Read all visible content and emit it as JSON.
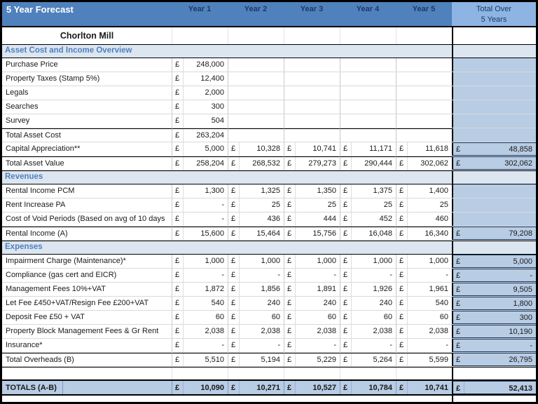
{
  "title": "5 Year Forecast",
  "property_name": "Chorlton Mill",
  "currency": "£",
  "year_columns": [
    "Year 1",
    "Year 2",
    "Year 3",
    "Year 4",
    "Year 5"
  ],
  "total_header": [
    "Total Over",
    "5 Years"
  ],
  "colors": {
    "header_blue": "#4F81BD",
    "total_header_bg": "#8DB4E2",
    "total_header_text": "#17375E",
    "year_header_text": "#1F3864",
    "section_bg": "#DCE6F1",
    "section_text": "#4F81BD",
    "block_bg": "#B8CCE4",
    "navy": "#17375E"
  },
  "sections": [
    {
      "title": "Asset Cost and Income Overview",
      "rows": [
        {
          "label": "Purchase Price",
          "values": [
            "248,000",
            null,
            null,
            null,
            null
          ],
          "total": {
            "type": "block"
          }
        },
        {
          "label": "Property Taxes (Stamp 5%)",
          "values": [
            "12,400",
            null,
            null,
            null,
            null
          ],
          "total": {
            "type": "block"
          }
        },
        {
          "label": "Legals",
          "values": [
            "2,000",
            null,
            null,
            null,
            null
          ],
          "total": {
            "type": "block"
          }
        },
        {
          "label": "Searches",
          "values": [
            "300",
            null,
            null,
            null,
            null
          ],
          "total": {
            "type": "block"
          }
        },
        {
          "label": "Survey",
          "values": [
            "504",
            null,
            null,
            null,
            null
          ],
          "total": {
            "type": "block"
          }
        },
        {
          "label": "Total Asset Cost",
          "values": [
            "263,204",
            null,
            null,
            null,
            null
          ],
          "total": {
            "type": "block"
          },
          "style": "subtotal"
        },
        {
          "label": "Capital Appreciation**",
          "values": [
            "5,000",
            "10,328",
            "10,741",
            "11,171",
            "11,618"
          ],
          "total": {
            "type": "value",
            "amount": "48,858"
          }
        },
        {
          "label": "Total Asset Value",
          "values": [
            "258,204",
            "268,532",
            "279,273",
            "290,444",
            "302,062"
          ],
          "total": {
            "type": "value",
            "amount": "302,062"
          },
          "style": "subtotal"
        }
      ]
    },
    {
      "title": "Revenues",
      "rows": [
        {
          "label": "Rental Income PCM",
          "values": [
            "1,300",
            "1,325",
            "1,350",
            "1,375",
            "1,400"
          ],
          "total": {
            "type": "block"
          }
        },
        {
          "label": "Rent Increase PA",
          "values": [
            "-",
            "25",
            "25",
            "25",
            "25"
          ],
          "total": {
            "type": "block"
          }
        },
        {
          "label": "Cost of Void Periods (Based on avg of 10 days",
          "values": [
            "-",
            "436",
            "444",
            "452",
            "460"
          ],
          "total": {
            "type": "block"
          }
        },
        {
          "label": "Rental Income (A)",
          "values": [
            "15,600",
            "15,464",
            "15,756",
            "16,048",
            "16,340"
          ],
          "total": {
            "type": "value",
            "amount": "79,208"
          },
          "style": "subtotal"
        }
      ]
    },
    {
      "title": "Expenses",
      "rows": [
        {
          "label": "Impairment Charge (Maintenance)*",
          "values": [
            "1,000",
            "1,000",
            "1,000",
            "1,000",
            "1,000"
          ],
          "total": {
            "type": "value",
            "amount": "5,000"
          }
        },
        {
          "label": "Compliance (gas cert and EICR)",
          "values": [
            "-",
            "-",
            "-",
            "-",
            "-"
          ],
          "total": {
            "type": "value",
            "amount": "-"
          }
        },
        {
          "label": "Management Fees 10%+VAT",
          "values": [
            "1,872",
            "1,856",
            "1,891",
            "1,926",
            "1,961"
          ],
          "total": {
            "type": "value",
            "amount": "9,505"
          }
        },
        {
          "label": "Let Fee £450+VAT/Resign Fee £200+VAT",
          "values": [
            "540",
            "240",
            "240",
            "240",
            "540"
          ],
          "total": {
            "type": "value",
            "amount": "1,800"
          }
        },
        {
          "label": "Deposit Fee £50 + VAT",
          "values": [
            "60",
            "60",
            "60",
            "60",
            "60"
          ],
          "total": {
            "type": "value",
            "amount": "300"
          }
        },
        {
          "label": "Property Block Management Fees & Gr Rent",
          "values": [
            "2,038",
            "2,038",
            "2,038",
            "2,038",
            "2,038"
          ],
          "total": {
            "type": "value",
            "amount": "10,190"
          }
        },
        {
          "label": "Insurance*",
          "values": [
            "-",
            "-",
            "-",
            "-",
            "-"
          ],
          "total": {
            "type": "value",
            "amount": "-"
          }
        },
        {
          "label": "Total Overheads (B)",
          "values": [
            "5,510",
            "5,194",
            "5,229",
            "5,264",
            "5,599"
          ],
          "total": {
            "type": "value",
            "amount": "26,795"
          },
          "style": "subtotal"
        }
      ]
    }
  ],
  "totals_row": {
    "label": "TOTALS (A-B)",
    "values": [
      "10,090",
      "10,271",
      "10,527",
      "10,784",
      "10,741"
    ],
    "total": "52,413"
  }
}
